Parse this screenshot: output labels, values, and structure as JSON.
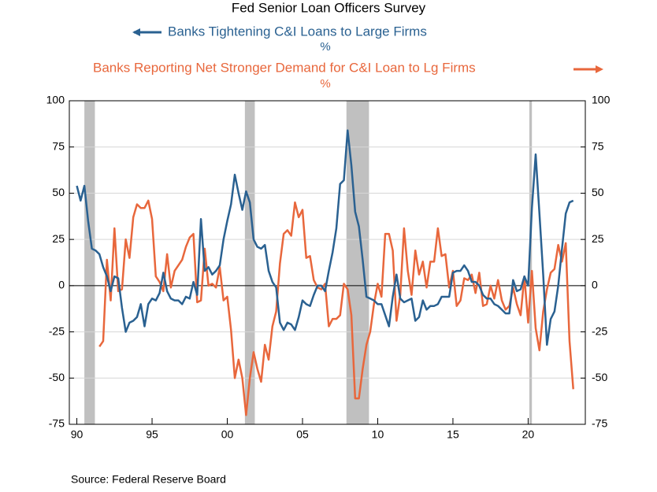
{
  "chart_data": {
    "type": "line",
    "title": "Fed Senior Loan Officers Survey",
    "source": "Source:  Federal Reserve Board",
    "y_label": "%",
    "y2_label": "%",
    "x": [
      1990,
      1990.25,
      1990.5,
      1990.75,
      1991,
      1991.25,
      1991.5,
      1991.75,
      1992,
      1992.25,
      1992.5,
      1992.75,
      1993,
      1993.25,
      1993.5,
      1993.75,
      1994,
      1994.25,
      1994.5,
      1994.75,
      1995,
      1995.25,
      1995.5,
      1995.75,
      1996,
      1996.25,
      1996.5,
      1996.75,
      1997,
      1997.25,
      1997.5,
      1997.75,
      1998,
      1998.25,
      1998.5,
      1998.75,
      1999,
      1999.25,
      1999.5,
      1999.75,
      2000,
      2000.25,
      2000.5,
      2000.75,
      2001,
      2001.25,
      2001.5,
      2001.75,
      2002,
      2002.25,
      2002.5,
      2002.75,
      2003,
      2003.25,
      2003.5,
      2003.75,
      2004,
      2004.25,
      2004.5,
      2004.75,
      2005,
      2005.25,
      2005.5,
      2005.75,
      2006,
      2006.25,
      2006.5,
      2006.75,
      2007,
      2007.25,
      2007.5,
      2007.75,
      2008,
      2008.25,
      2008.5,
      2008.75,
      2009,
      2009.25,
      2009.5,
      2009.75,
      2010,
      2010.25,
      2010.5,
      2010.75,
      2011,
      2011.25,
      2011.5,
      2011.75,
      2012,
      2012.25,
      2012.5,
      2012.75,
      2013,
      2013.25,
      2013.5,
      2013.75,
      2014,
      2014.25,
      2014.5,
      2014.75,
      2015,
      2015.25,
      2015.5,
      2015.75,
      2016,
      2016.25,
      2016.5,
      2016.75,
      2017,
      2017.25,
      2017.5,
      2017.75,
      2018,
      2018.25,
      2018.5,
      2018.75,
      2019,
      2019.25,
      2019.5,
      2019.75,
      2020,
      2020.25,
      2020.5,
      2020.75,
      2021,
      2021.25,
      2021.5,
      2021.75,
      2022,
      2022.25,
      2022.5,
      2022.75,
      2023
    ],
    "series": [
      {
        "name": "Banks Tightening C&I Loans to Large Firms",
        "color": "#2a6191",
        "axis": "y",
        "values": [
          54,
          46,
          54,
          35,
          20,
          19,
          17,
          10,
          5,
          -3,
          5,
          4,
          -12,
          -25,
          -20,
          -19,
          -17,
          -10,
          -22,
          -10,
          -7,
          -8,
          -4,
          7,
          -3,
          -7,
          -8,
          -8,
          -10,
          -6,
          -7,
          2,
          -5,
          36,
          8,
          10,
          6,
          8,
          11,
          25,
          35,
          44,
          60,
          50,
          41,
          51,
          45,
          25,
          21,
          20,
          22,
          8,
          2,
          -1,
          -20,
          -24,
          -20,
          -21,
          -24,
          -17,
          -8,
          -10,
          -11,
          -5,
          0,
          0,
          -3,
          8,
          18,
          31,
          55,
          57,
          84,
          65,
          40,
          32,
          14,
          -6,
          -7,
          -8,
          -10,
          -10,
          -16,
          -22,
          -6,
          6,
          -7,
          -9,
          -8,
          -7,
          -19,
          -17,
          -8,
          -13,
          -11,
          -11,
          -10,
          -6,
          -6,
          -6,
          7,
          8,
          8,
          11,
          8,
          2,
          2,
          0,
          -5,
          -7,
          -7,
          -10,
          -11,
          -13,
          -15,
          -15,
          3,
          -3,
          -2,
          5,
          0,
          42,
          71,
          39,
          6,
          -32,
          -18,
          -14,
          0,
          20,
          39,
          45,
          46
        ]
      },
      {
        "name": "Banks Reporting Net Stronger Demand for C&I Loan to Lg Firms",
        "color": "#e8673c",
        "axis": "y2",
        "values": [
          null,
          null,
          null,
          null,
          null,
          null,
          -33,
          -30,
          14,
          -8,
          31,
          -3,
          -2,
          25,
          15,
          37,
          44,
          42,
          42,
          46,
          36,
          5,
          2,
          -3,
          17,
          -1,
          8,
          11,
          14,
          21,
          26,
          28,
          -9,
          -8,
          20,
          0,
          1,
          -1,
          10,
          -8,
          -6,
          -24,
          -50,
          -40,
          -50,
          -70,
          -50,
          -36,
          -45,
          -52,
          -32,
          -40,
          -22,
          -14,
          12,
          28,
          30,
          27,
          45,
          37,
          41,
          15,
          16,
          3,
          -1,
          -2,
          1,
          -22,
          -18,
          -18,
          -16,
          1,
          -2,
          -16,
          -61,
          -61,
          -45,
          -32,
          -25,
          -10,
          1,
          -6,
          28,
          28,
          19,
          -19,
          -5,
          31,
          8,
          -5,
          19,
          6,
          13,
          -1,
          13,
          13,
          31,
          16,
          17,
          -1,
          8,
          -11,
          -8,
          4,
          3,
          6,
          -4,
          7,
          -11,
          -10,
          0,
          -7,
          3,
          -8,
          -13,
          -11,
          -1,
          -10,
          -16,
          5,
          -20,
          8,
          -23,
          -35,
          -14,
          -2,
          7,
          9,
          22,
          13,
          23,
          -30,
          -56
        ]
      }
    ],
    "recessions": [
      [
        1990.5,
        1991.2
      ],
      [
        2001.17,
        2001.83
      ],
      [
        2007.92,
        2009.42
      ],
      [
        2020.08,
        2020.25
      ]
    ],
    "recession_color": "#c0c0c0",
    "xlim": [
      1989.5,
      2023.8
    ],
    "xticks": [
      {
        "value": 1990,
        "label": "90"
      },
      {
        "value": 1995,
        "label": "95"
      },
      {
        "value": 2000,
        "label": "00"
      },
      {
        "value": 2005,
        "label": "05"
      },
      {
        "value": 2010,
        "label": "10"
      },
      {
        "value": 2015,
        "label": "15"
      },
      {
        "value": 2020,
        "label": "20"
      }
    ],
    "ylim": [
      -75,
      100
    ],
    "yticks": [
      -75,
      -50,
      -25,
      0,
      25,
      50,
      75,
      100
    ],
    "y2lim": [
      -75,
      100
    ],
    "y2ticks": [
      -75,
      -50,
      -25,
      0,
      25,
      50,
      75,
      100
    ],
    "grid": true
  }
}
